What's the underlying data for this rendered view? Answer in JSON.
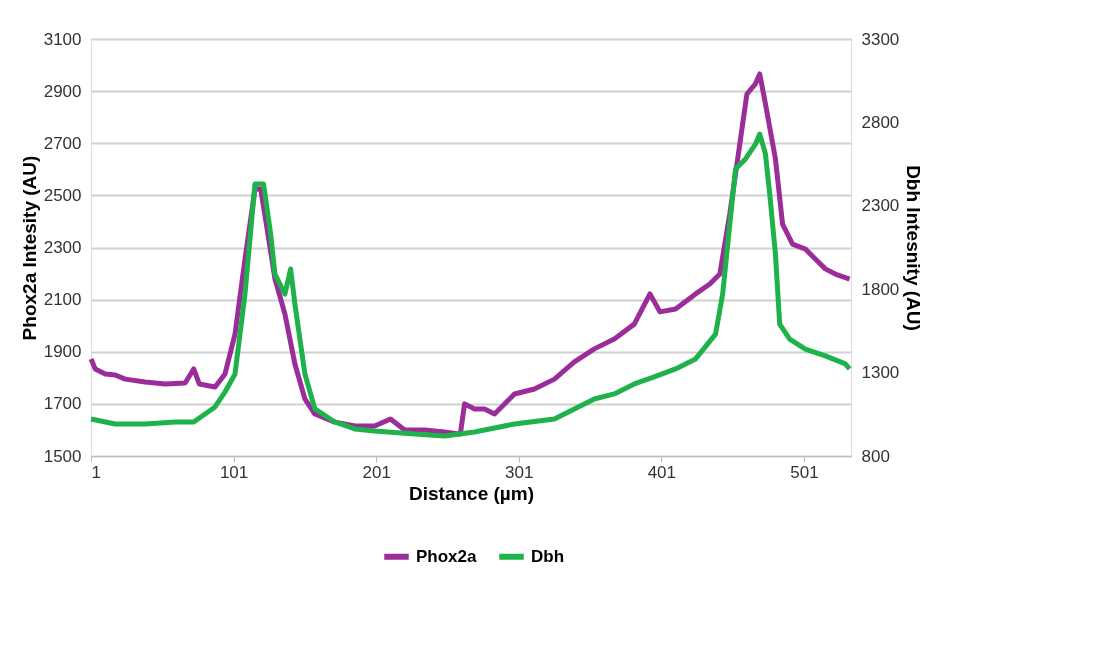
{
  "chart_data": {
    "type": "line",
    "xlabel": "Distance (µm)",
    "ylabel": "Phox2a Intesity (AU)",
    "y2label": "Dbh  Intesnity (AU)",
    "xlim": [
      1,
      534
    ],
    "xticks": [
      1,
      101,
      201,
      301,
      401,
      501
    ],
    "ylim": [
      1500,
      3100
    ],
    "yticks": [
      1500,
      1700,
      1900,
      2100,
      2300,
      2500,
      2700,
      2900,
      3100
    ],
    "y2lim": [
      800,
      3300
    ],
    "y2ticks": [
      800,
      1300,
      1800,
      2300,
      2800,
      3300
    ],
    "grid": "y",
    "legend": "bottom",
    "marker": "none",
    "line_style": "solid",
    "series": [
      {
        "name": "Phox2a",
        "color": "#9b2d9b",
        "x": [
          1,
          4,
          11,
          18,
          25,
          39,
          53,
          67,
          73,
          77,
          88,
          95,
          102,
          109,
          116,
          120,
          124,
          130,
          137,
          144,
          151,
          158,
          172,
          186,
          200,
          211,
          221,
          235,
          249,
          260,
          263,
          270,
          277,
          284,
          298,
          312,
          326,
          340,
          354,
          368,
          382,
          393,
          400,
          411,
          425,
          435,
          442,
          449,
          456,
          461,
          467,
          470,
          474,
          481,
          486,
          493,
          502,
          509,
          516,
          523,
          533
        ],
        "values": [
          1872,
          1834,
          1815,
          1811,
          1795,
          1784,
          1776,
          1780,
          1834,
          1776,
          1765,
          1815,
          1968,
          2256,
          2524,
          2524,
          2390,
          2180,
          2045,
          1853,
          1719,
          1661,
          1630,
          1615,
          1615,
          1642,
          1600,
          1600,
          1592,
          1584,
          1700,
          1680,
          1680,
          1661,
          1738,
          1757,
          1795,
          1861,
          1911,
          1949,
          2006,
          2122,
          2053,
          2064,
          2122,
          2160,
          2198,
          2429,
          2697,
          2889,
          2928,
          2966,
          2851,
          2640,
          2390,
          2313,
          2294,
          2256,
          2218,
          2198,
          2179
        ]
      },
      {
        "name": "Dbh",
        "color": "#1fb24a",
        "axis": "y2",
        "x": [
          1,
          18,
          39,
          60,
          73,
          81,
          88,
          95,
          102,
          109,
          116,
          122,
          127,
          130,
          137,
          141,
          144,
          151,
          158,
          172,
          186,
          200,
          228,
          249,
          270,
          298,
          326,
          340,
          354,
          368,
          382,
          396,
          411,
          425,
          439,
          444,
          449,
          453,
          460,
          467,
          470,
          474,
          477,
          481,
          484,
          491,
          502,
          516,
          530,
          533
        ],
        "values": [
          1022,
          992,
          992,
          1004,
          1004,
          1052,
          1094,
          1184,
          1292,
          1771,
          2431,
          2431,
          2131,
          1891,
          1771,
          1921,
          1711,
          1292,
          1082,
          1004,
          962,
          950,
          932,
          920,
          944,
          992,
          1022,
          1082,
          1142,
          1172,
          1232,
          1274,
          1322,
          1382,
          1531,
          1771,
          2191,
          2521,
          2581,
          2670,
          2730,
          2611,
          2371,
          2011,
          1591,
          1501,
          1441,
          1400,
          1352,
          1322
        ]
      }
    ]
  }
}
